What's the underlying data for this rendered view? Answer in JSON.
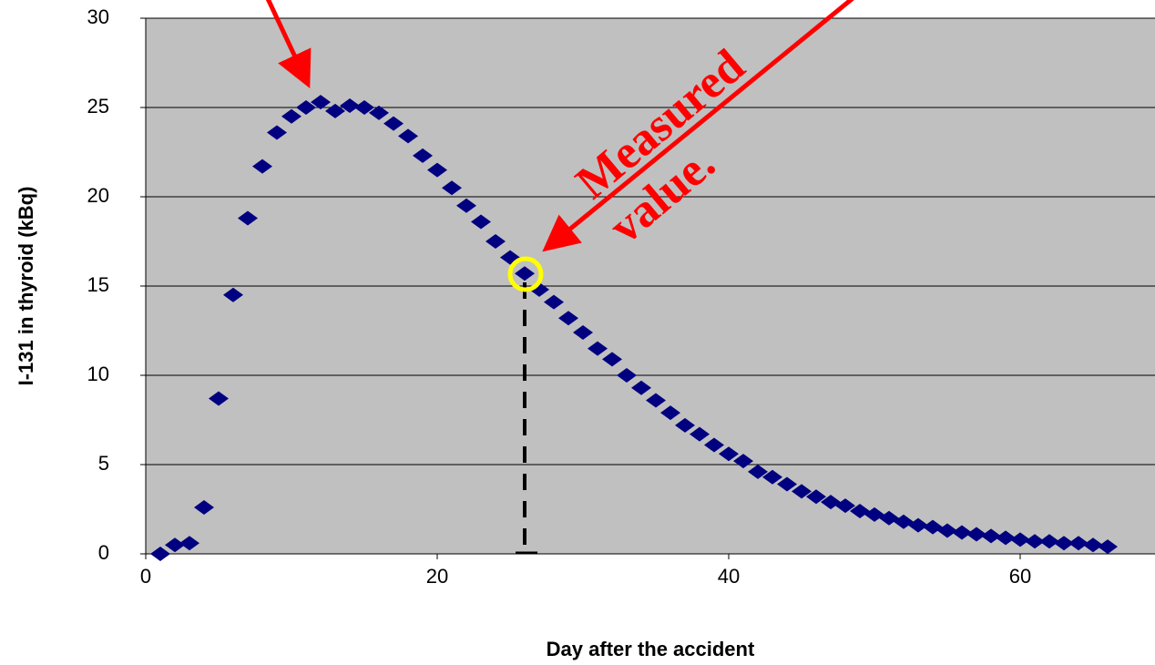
{
  "chart_data": {
    "type": "scatter",
    "x_label": "Day after the accident",
    "y_label": "I-131 in thyroid (kBq)",
    "annotation_lines": [
      "Measured",
      "value."
    ],
    "x": [
      1,
      2,
      3,
      4,
      5,
      6,
      7,
      8,
      9,
      10,
      11,
      12,
      13,
      14,
      15,
      16,
      17,
      18,
      19,
      20,
      21,
      22,
      23,
      24,
      25,
      26,
      27,
      28,
      29,
      30,
      31,
      32,
      33,
      34,
      35,
      36,
      37,
      38,
      39,
      40,
      41,
      42,
      43,
      44,
      45,
      46,
      47,
      48,
      49,
      50,
      51,
      52,
      53,
      54,
      55,
      56,
      57,
      58,
      59,
      60,
      61,
      62,
      63,
      64,
      65,
      66
    ],
    "values": [
      0,
      0.5,
      0.6,
      2.6,
      8.7,
      14.5,
      18.8,
      21.7,
      23.6,
      24.5,
      25.0,
      25.3,
      24.8,
      25.1,
      25.0,
      24.7,
      24.1,
      23.4,
      22.3,
      21.5,
      20.5,
      19.5,
      18.6,
      17.5,
      16.6,
      15.7,
      14.8,
      14.1,
      13.2,
      12.4,
      11.5,
      10.9,
      10.0,
      9.3,
      8.6,
      7.9,
      7.2,
      6.7,
      6.1,
      5.6,
      5.2,
      4.6,
      4.3,
      3.9,
      3.5,
      3.2,
      2.9,
      2.7,
      2.4,
      2.2,
      2.0,
      1.8,
      1.6,
      1.5,
      1.3,
      1.2,
      1.1,
      1.0,
      0.9,
      0.8,
      0.7,
      0.7,
      0.6,
      0.6,
      0.5,
      0.4
    ],
    "color": "#000080",
    "plot_background": "#c0c0c0",
    "xlim": [
      0,
      70
    ],
    "xticks": [
      0,
      20,
      40,
      60
    ],
    "ylim": [
      0,
      30
    ],
    "yticks": [
      0,
      5,
      10,
      15,
      20,
      25,
      30
    ],
    "grid": true
  }
}
